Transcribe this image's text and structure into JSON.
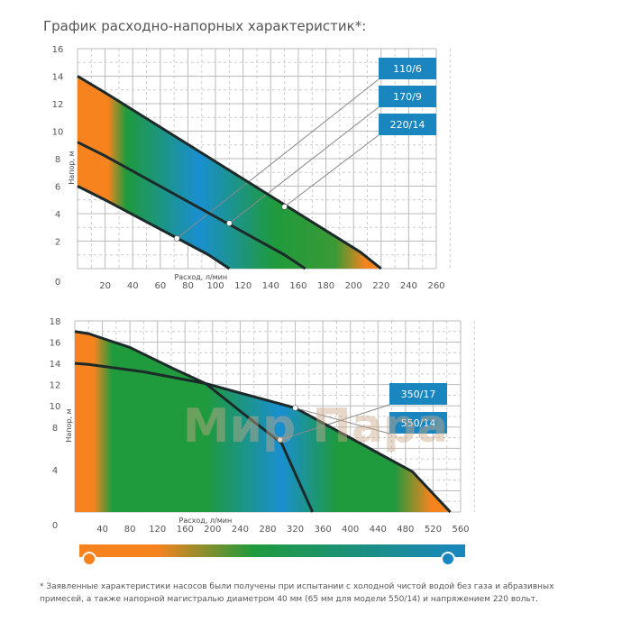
{
  "title": "График расходно-напорных характеристик*:",
  "chart_data": [
    {
      "type": "line",
      "xlabel": "Расход, л/мин",
      "ylabel": "Напор, м",
      "xlim": [
        0,
        260
      ],
      "ylim": [
        0,
        16
      ],
      "x_ticks": [
        0,
        20,
        40,
        60,
        80,
        100,
        120,
        140,
        160,
        180,
        200,
        220,
        240,
        260
      ],
      "y_ticks": [
        0,
        2,
        4,
        6,
        8,
        10,
        12,
        14,
        16
      ],
      "grid": true,
      "series": [
        {
          "name": "110/6",
          "x": [
            0,
            20,
            95,
            110
          ],
          "y": [
            6,
            5,
            1,
            0
          ],
          "marker": [
            72,
            2.2
          ]
        },
        {
          "name": "170/9",
          "x": [
            0,
            20,
            150,
            165
          ],
          "y": [
            9.2,
            8.2,
            1,
            0
          ],
          "marker": [
            110,
            3.3
          ]
        },
        {
          "name": "220/14",
          "x": [
            0,
            20,
            205,
            220
          ],
          "y": [
            14,
            12.8,
            1.2,
            0
          ],
          "marker": [
            150,
            4.5
          ]
        }
      ]
    },
    {
      "type": "line",
      "xlabel": "Расход, л/мин",
      "ylabel": "Напор, м",
      "xlim": [
        0,
        560
      ],
      "ylim": [
        0,
        18
      ],
      "x_ticks": [
        0,
        40,
        80,
        120,
        160,
        200,
        240,
        280,
        320,
        360,
        400,
        440,
        480,
        520,
        560
      ],
      "y_ticks": [
        0,
        4,
        8,
        10,
        12,
        14,
        16,
        18
      ],
      "grid": true,
      "series": [
        {
          "name": "350/17",
          "x": [
            0,
            20,
            80,
            140,
            190,
            240,
            300,
            345
          ],
          "y": [
            17,
            16.8,
            15.5,
            13.6,
            12.1,
            9.5,
            6.5,
            0
          ],
          "marker": [
            298,
            6.8
          ]
        },
        {
          "name": "550/14",
          "x": [
            0,
            20,
            100,
            190,
            320,
            490,
            545
          ],
          "y": [
            14,
            13.9,
            13.2,
            12.1,
            9.8,
            3.8,
            0
          ],
          "marker": [
            320,
            9.8
          ]
        }
      ]
    }
  ],
  "watermark": "Мир Пара",
  "colors": {
    "orange": "#f7831f",
    "green": "#1f9a3c",
    "blue": "#1a8fd0",
    "label_bg": "#1a86c0"
  },
  "footnote": "* Заявленные характеристики насосов были получены при испытании с холодной чистой водой без газа и абразивных примесей, а также напорной магистралью диаметром 40 мм (65 мм для модели 550/14) и напряжением 220 вольт."
}
